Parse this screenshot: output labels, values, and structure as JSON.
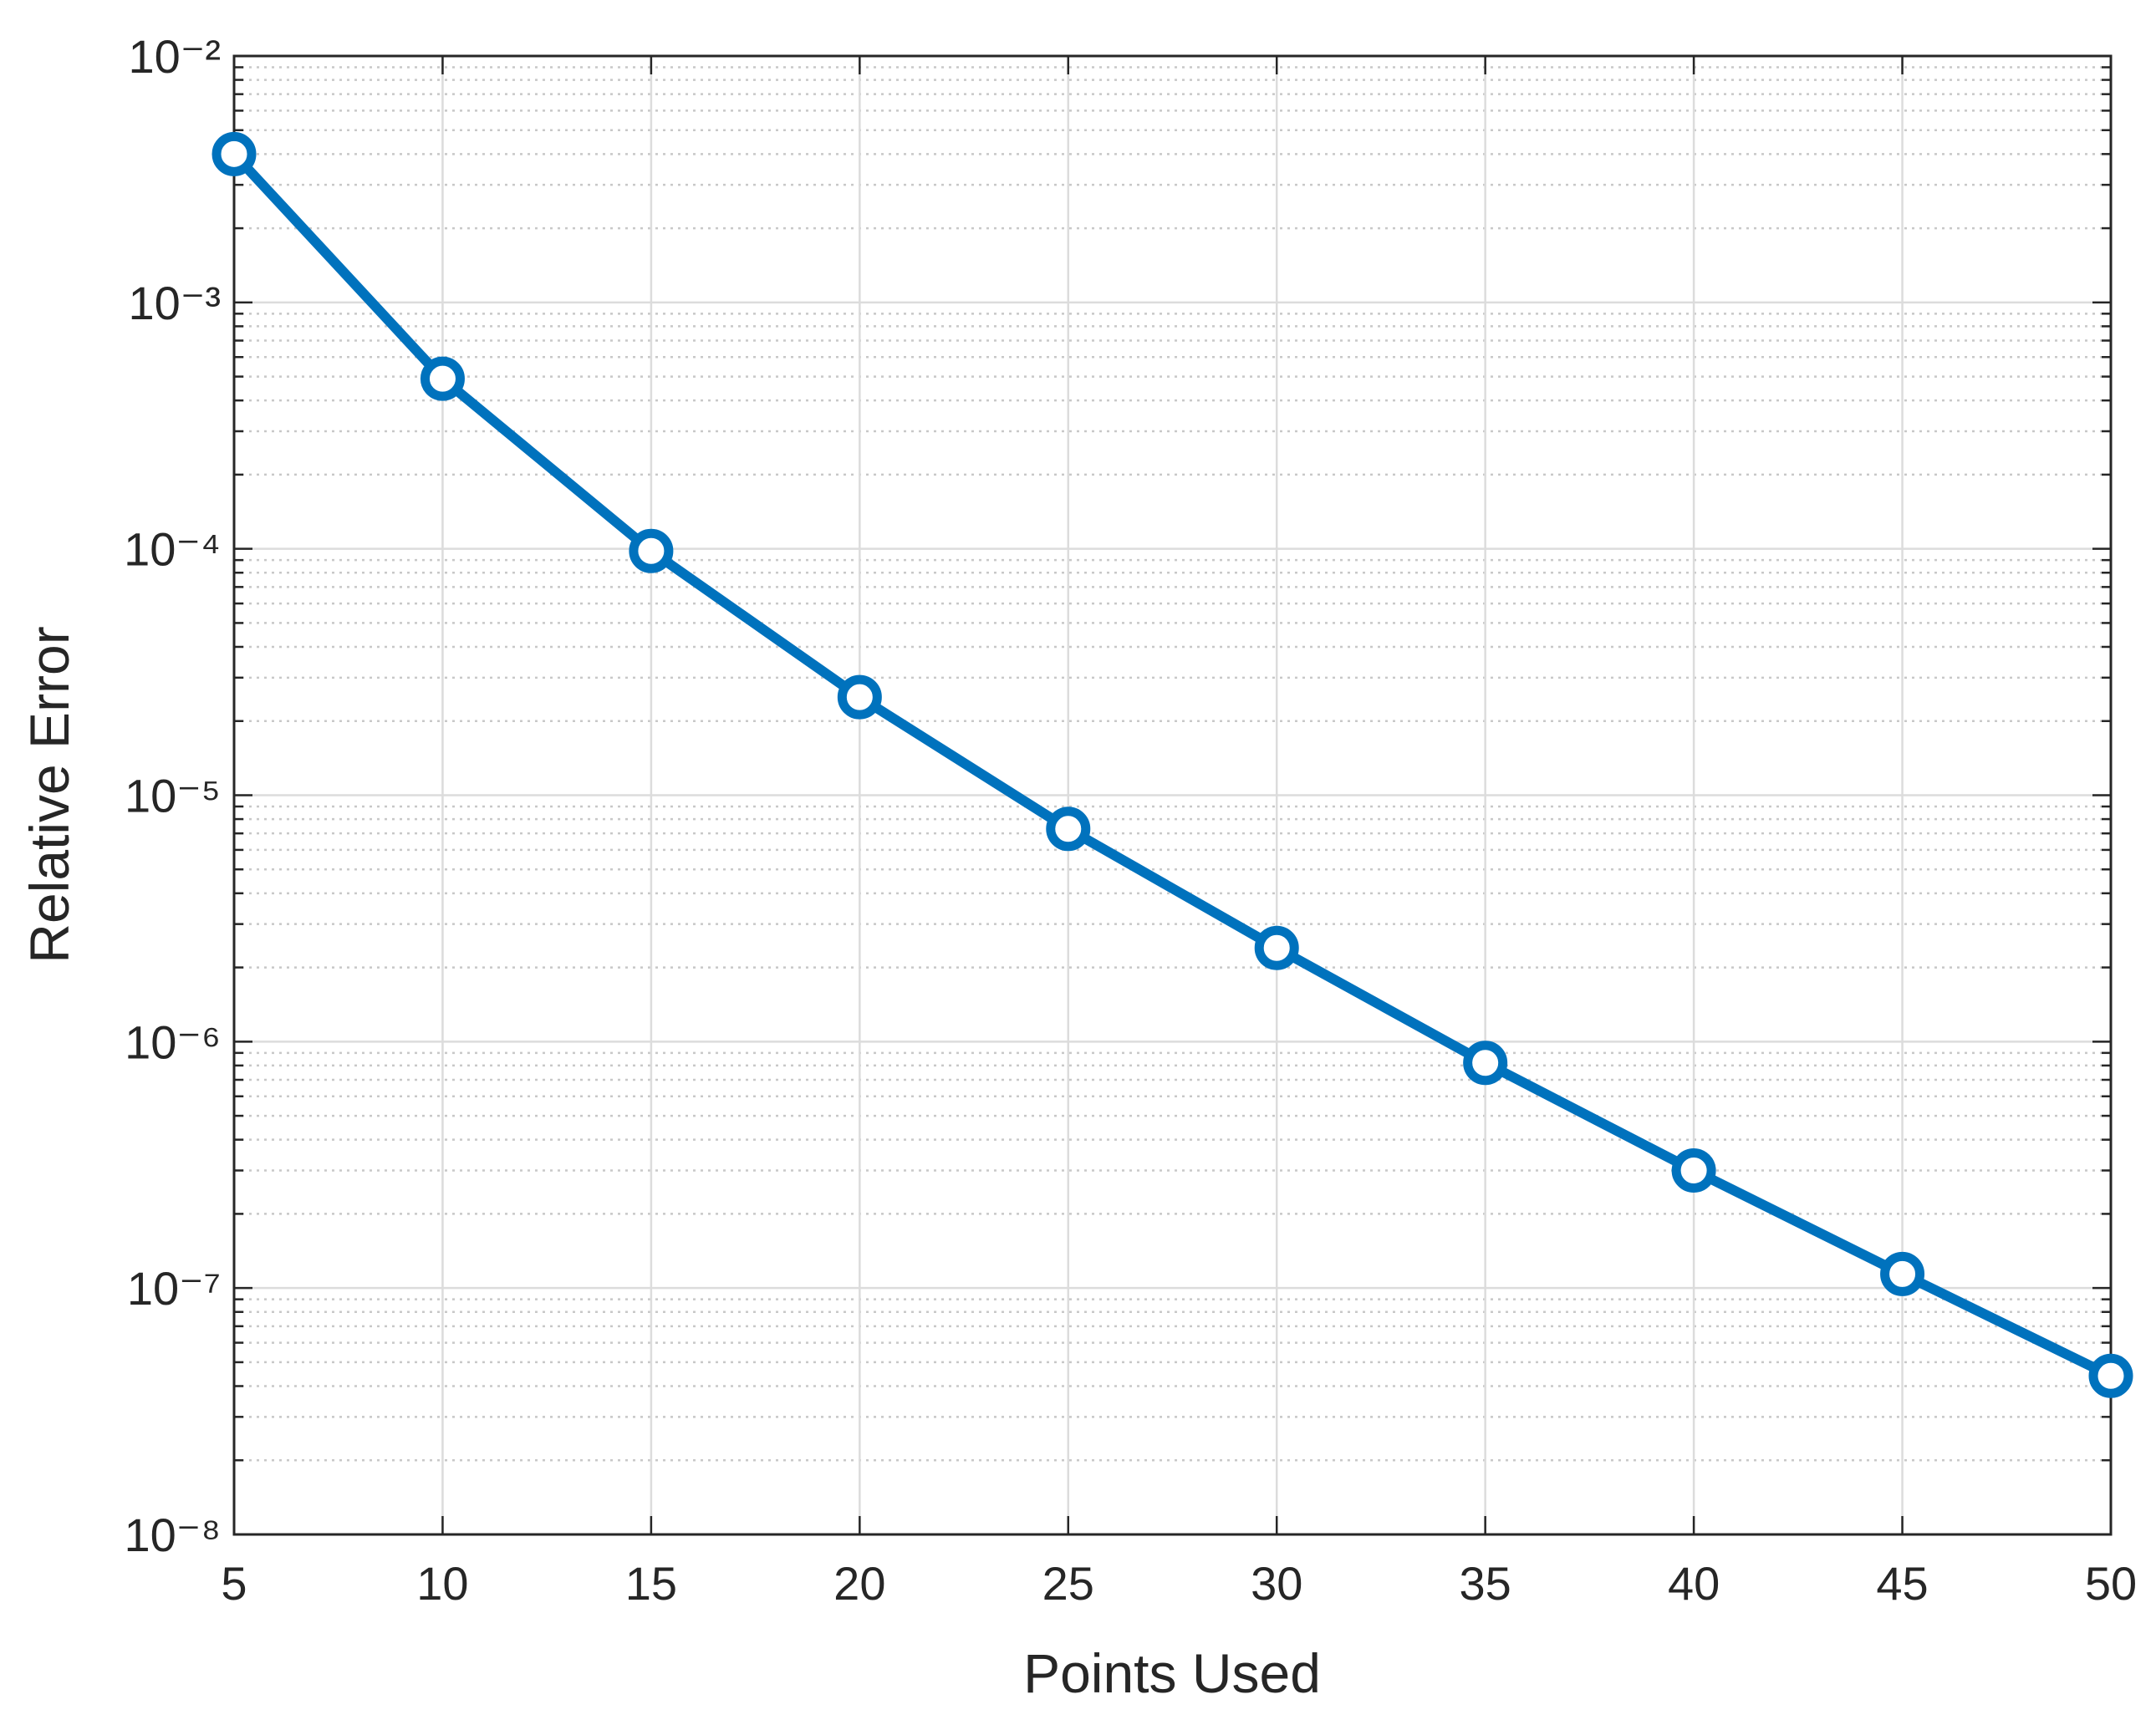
{
  "chart_data": {
    "type": "line",
    "x_label": "Points Used",
    "y_label": "Relative Error",
    "x": [
      5,
      10,
      15,
      20,
      25,
      30,
      35,
      40,
      45,
      50
    ],
    "series": [
      {
        "name": "Relative Error",
        "color": "#0072bd",
        "values": [
          0.004,
          0.00049,
          9.8e-05,
          2.5e-05,
          7.3e-06,
          2.4e-06,
          8.2e-07,
          3e-07,
          1.14e-07,
          4.4e-08
        ]
      }
    ],
    "xlim": [
      5,
      50
    ],
    "xticks": [
      5,
      10,
      15,
      20,
      25,
      30,
      35,
      40,
      45,
      50
    ],
    "ylim": [
      1e-08,
      0.01
    ],
    "log_y": true,
    "yticks": [
      {
        "value": 1e-08,
        "label": "10⁻⁸"
      },
      {
        "value": 1e-07,
        "label": "10⁻⁷"
      },
      {
        "value": 1e-06,
        "label": "10⁻⁶"
      },
      {
        "value": 1e-05,
        "label": "10⁻⁵"
      },
      {
        "value": 0.0001,
        "label": "10⁻⁴"
      },
      {
        "value": 0.001,
        "label": "10⁻³"
      },
      {
        "value": 0.01,
        "label": "10⁻²"
      }
    ],
    "grid": true,
    "minor_grid": true,
    "marker": "circle"
  }
}
